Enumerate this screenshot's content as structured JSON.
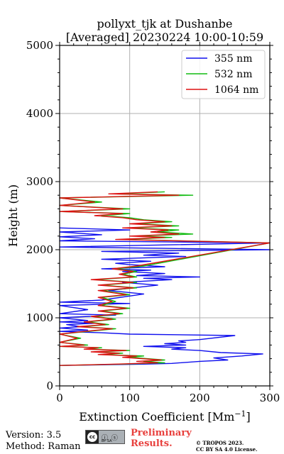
{
  "chart_data": {
    "type": "line",
    "title": "pollyxt_tjk at Dushanbe",
    "subtitle": "[Averaged] 20230224 10:00-10:59",
    "xlabel": "Extinction Coefficient [Mm",
    "xlabel_sup": "−1",
    "xlabel_close": "]",
    "ylabel": "Height (m)",
    "xlim": [
      0,
      300
    ],
    "ylim": [
      0,
      5000
    ],
    "xticks": [
      0,
      100,
      200,
      300
    ],
    "yticks": [
      0,
      1000,
      2000,
      3000,
      4000,
      5000
    ],
    "grid": true,
    "legend_position": "top-right",
    "series": [
      {
        "name": "355 nm",
        "color": "#1010ee",
        "points": [
          [
            0,
            300
          ],
          [
            120,
            320
          ],
          [
            160,
            330
          ],
          [
            200,
            360
          ],
          [
            240,
            380
          ],
          [
            220,
            410
          ],
          [
            260,
            440
          ],
          [
            290,
            470
          ],
          [
            230,
            490
          ],
          [
            200,
            520
          ],
          [
            160,
            540
          ],
          [
            180,
            560
          ],
          [
            120,
            580
          ],
          [
            180,
            600
          ],
          [
            150,
            620
          ],
          [
            180,
            640
          ],
          [
            170,
            660
          ],
          [
            200,
            680
          ],
          [
            250,
            740
          ],
          [
            100,
            760
          ],
          [
            60,
            780
          ],
          [
            0,
            800
          ],
          [
            40,
            820
          ],
          [
            0,
            850
          ],
          [
            30,
            870
          ],
          [
            10,
            900
          ],
          [
            50,
            920
          ],
          [
            0,
            940
          ],
          [
            40,
            960
          ],
          [
            0,
            1000
          ],
          [
            80,
            1040
          ],
          [
            0,
            1060
          ],
          [
            40,
            1120
          ],
          [
            0,
            1180
          ],
          [
            100,
            1210
          ],
          [
            0,
            1230
          ],
          [
            60,
            1260
          ],
          [
            120,
            1350
          ],
          [
            70,
            1400
          ],
          [
            140,
            1480
          ],
          [
            90,
            1520
          ],
          [
            160,
            1560
          ],
          [
            120,
            1580
          ],
          [
            200,
            1600
          ],
          [
            110,
            1620
          ],
          [
            150,
            1650
          ],
          [
            90,
            1680
          ],
          [
            130,
            1700
          ],
          [
            60,
            1720
          ],
          [
            150,
            1750
          ],
          [
            100,
            1780
          ],
          [
            80,
            1800
          ],
          [
            130,
            1830
          ],
          [
            60,
            1860
          ],
          [
            180,
            1900
          ],
          [
            120,
            1920
          ],
          [
            170,
            1950
          ],
          [
            60,
            1975
          ],
          [
            300,
            2000
          ],
          [
            150,
            2020
          ],
          [
            0,
            2040
          ],
          [
            300,
            2100
          ],
          [
            0,
            2130
          ],
          [
            50,
            2160
          ],
          [
            0,
            2190
          ],
          [
            60,
            2220
          ],
          [
            0,
            2260
          ],
          [
            100,
            2290
          ],
          [
            0,
            2320
          ]
        ]
      },
      {
        "name": "532 nm",
        "color": "#11bb11",
        "points": [
          [
            0,
            300
          ],
          [
            90,
            320
          ],
          [
            150,
            340
          ],
          [
            120,
            360
          ],
          [
            150,
            380
          ],
          [
            100,
            420
          ],
          [
            120,
            440
          ],
          [
            60,
            460
          ],
          [
            90,
            480
          ],
          [
            50,
            500
          ],
          [
            100,
            520
          ],
          [
            40,
            540
          ],
          [
            60,
            560
          ],
          [
            0,
            580
          ],
          [
            40,
            600
          ],
          [
            0,
            640
          ],
          [
            30,
            700
          ],
          [
            0,
            760
          ],
          [
            40,
            800
          ],
          [
            80,
            840
          ],
          [
            30,
            870
          ],
          [
            70,
            900
          ],
          [
            40,
            940
          ],
          [
            80,
            980
          ],
          [
            50,
            1020
          ],
          [
            90,
            1060
          ],
          [
            60,
            1100
          ],
          [
            100,
            1140
          ],
          [
            60,
            1180
          ],
          [
            80,
            1240
          ],
          [
            60,
            1300
          ],
          [
            100,
            1340
          ],
          [
            60,
            1400
          ],
          [
            110,
            1440
          ],
          [
            60,
            1480
          ],
          [
            110,
            1520
          ],
          [
            50,
            1560
          ],
          [
            110,
            1600
          ],
          [
            90,
            1640
          ],
          [
            110,
            1680
          ],
          [
            80,
            1720
          ],
          [
            120,
            1760
          ],
          [
            300,
            2100
          ],
          [
            90,
            2150
          ],
          [
            160,
            2180
          ],
          [
            110,
            2200
          ],
          [
            190,
            2230
          ],
          [
            140,
            2260
          ],
          [
            170,
            2290
          ],
          [
            100,
            2320
          ],
          [
            170,
            2350
          ],
          [
            110,
            2380
          ],
          [
            160,
            2410
          ],
          [
            120,
            2440
          ],
          [
            100,
            2470
          ],
          [
            60,
            2500
          ],
          [
            100,
            2530
          ],
          [
            0,
            2560
          ],
          [
            100,
            2600
          ],
          [
            0,
            2650
          ],
          [
            60,
            2700
          ],
          [
            0,
            2760
          ],
          [
            190,
            2800
          ],
          [
            80,
            2820
          ],
          [
            150,
            2850
          ]
        ]
      },
      {
        "name": "1064 nm",
        "color": "#dd1111",
        "points": [
          [
            0,
            300
          ],
          [
            80,
            320
          ],
          [
            140,
            340
          ],
          [
            110,
            360
          ],
          [
            145,
            380
          ],
          [
            90,
            420
          ],
          [
            110,
            440
          ],
          [
            55,
            460
          ],
          [
            85,
            480
          ],
          [
            45,
            500
          ],
          [
            95,
            520
          ],
          [
            35,
            540
          ],
          [
            55,
            560
          ],
          [
            0,
            580
          ],
          [
            35,
            600
          ],
          [
            0,
            640
          ],
          [
            25,
            700
          ],
          [
            0,
            760
          ],
          [
            35,
            800
          ],
          [
            75,
            840
          ],
          [
            25,
            870
          ],
          [
            65,
            900
          ],
          [
            35,
            940
          ],
          [
            75,
            980
          ],
          [
            45,
            1020
          ],
          [
            85,
            1060
          ],
          [
            55,
            1100
          ],
          [
            95,
            1140
          ],
          [
            55,
            1180
          ],
          [
            75,
            1240
          ],
          [
            55,
            1300
          ],
          [
            95,
            1340
          ],
          [
            55,
            1400
          ],
          [
            105,
            1440
          ],
          [
            55,
            1480
          ],
          [
            105,
            1520
          ],
          [
            45,
            1560
          ],
          [
            105,
            1600
          ],
          [
            85,
            1640
          ],
          [
            105,
            1680
          ],
          [
            75,
            1720
          ],
          [
            110,
            1760
          ],
          [
            300,
            2100
          ],
          [
            80,
            2150
          ],
          [
            150,
            2180
          ],
          [
            100,
            2200
          ],
          [
            170,
            2230
          ],
          [
            130,
            2260
          ],
          [
            155,
            2290
          ],
          [
            90,
            2320
          ],
          [
            160,
            2350
          ],
          [
            100,
            2380
          ],
          [
            150,
            2410
          ],
          [
            110,
            2440
          ],
          [
            90,
            2470
          ],
          [
            50,
            2500
          ],
          [
            90,
            2530
          ],
          [
            0,
            2560
          ],
          [
            90,
            2600
          ],
          [
            0,
            2650
          ],
          [
            50,
            2700
          ],
          [
            0,
            2760
          ],
          [
            170,
            2800
          ],
          [
            70,
            2820
          ],
          [
            140,
            2850
          ]
        ]
      }
    ]
  },
  "footer": {
    "version": "Version: 3.5",
    "method": "Method: Raman",
    "license_badge": "cc",
    "license_icons": "ⓘ ⓢ",
    "license_text": "BY  SA",
    "preliminary_line1": "Preliminary",
    "preliminary_line2": "Results.",
    "copyright_line1": "© TROPOS 2023.",
    "copyright_line2": "CC BY SA 4.0 License."
  }
}
